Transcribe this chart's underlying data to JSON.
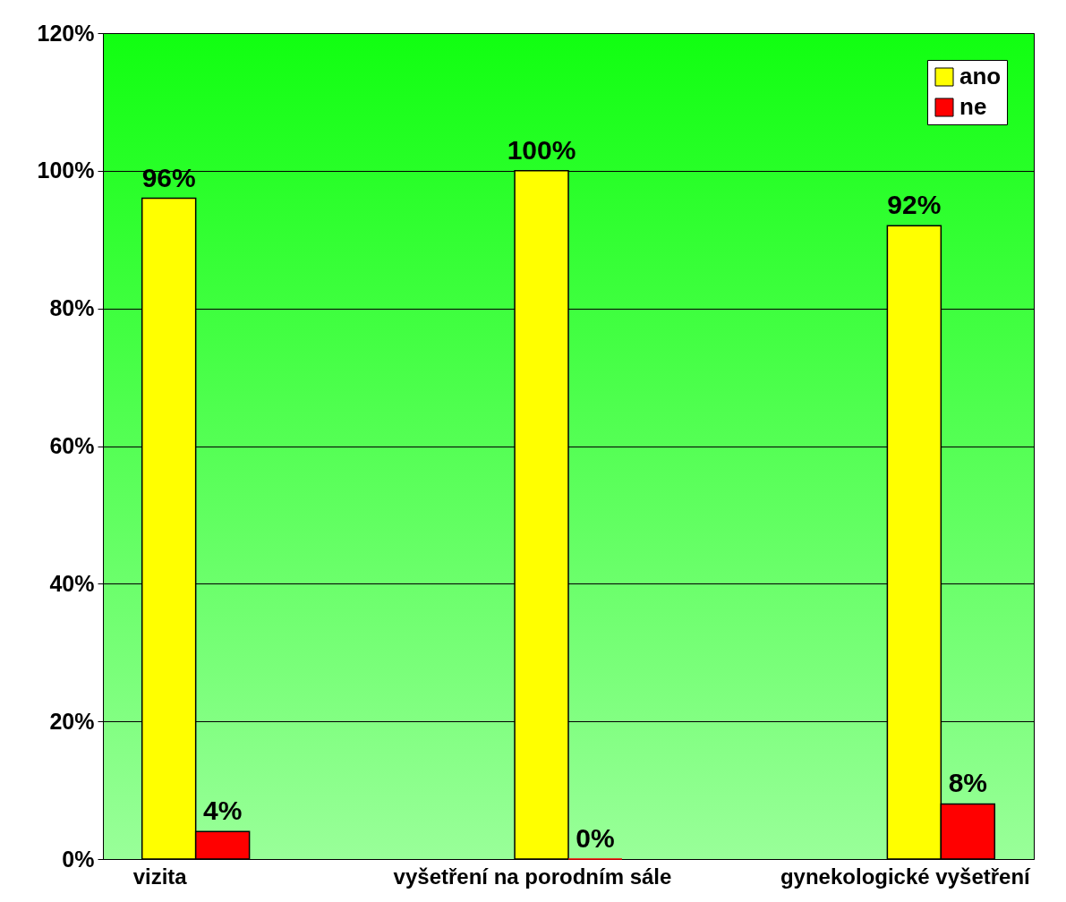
{
  "chart_data": {
    "type": "bar",
    "categories": [
      "vizita",
      "vyšetření na porodním sále",
      "gynekologické vyšetření"
    ],
    "series": [
      {
        "name": "ano",
        "color": "#ffff00",
        "values": [
          96,
          100,
          92
        ],
        "value_labels": [
          "96%",
          "100%",
          "92%"
        ]
      },
      {
        "name": "ne",
        "color": "#ff0000",
        "values": [
          4,
          0,
          8
        ],
        "value_labels": [
          "4%",
          "0%",
          "8%"
        ]
      }
    ],
    "ylim": [
      0,
      120
    ],
    "yticks": [
      {
        "value": 0,
        "label": "0%"
      },
      {
        "value": 20,
        "label": "20%"
      },
      {
        "value": 40,
        "label": "40%"
      },
      {
        "value": 60,
        "label": "60%"
      },
      {
        "value": 80,
        "label": "80%"
      },
      {
        "value": 100,
        "label": "100%"
      },
      {
        "value": 120,
        "label": "120%"
      }
    ],
    "grid": "y",
    "legend": "top right"
  }
}
